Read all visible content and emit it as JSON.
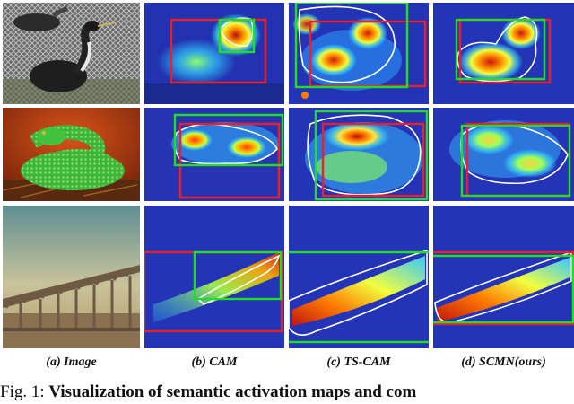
{
  "column_labels": [
    "(a) Image",
    "(b) CAM",
    "(c) TS-CAM",
    "(d) SCMN(ours)"
  ],
  "caption": {
    "prefix": "Fig. 1:",
    "bold": "Visualization of semantic activation maps and com"
  },
  "rows": [
    {
      "subject": "grebe"
    },
    {
      "subject": "snake"
    },
    {
      "subject": "bridge"
    }
  ],
  "box_colors": {
    "ground_truth": "#e8202a",
    "prediction": "#22dd22",
    "contour": "#ffffff"
  }
}
